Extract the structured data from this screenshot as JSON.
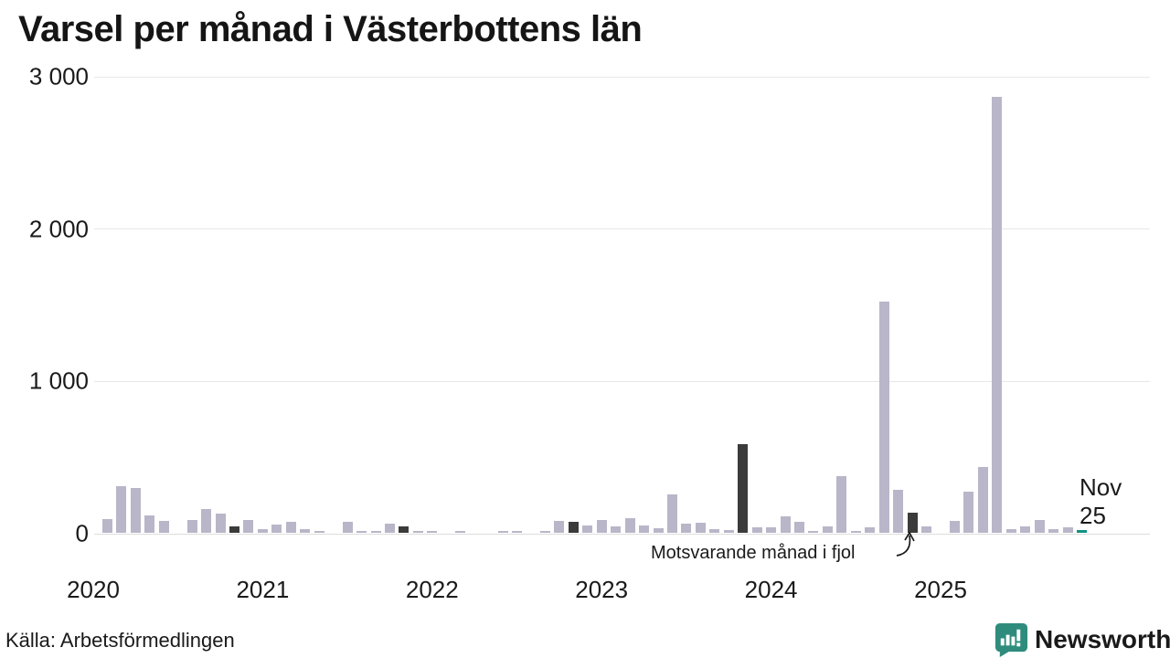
{
  "page": {
    "source_label": "Källa: Arbetsförmedlingen"
  },
  "brand": {
    "name": "Newsworthy",
    "color": "#35897b"
  },
  "chart_data": {
    "type": "bar",
    "title": "Varsel per månad i Västerbottens län",
    "xlabel": "",
    "ylabel": "",
    "ylim": [
      0,
      3000
    ],
    "grid": true,
    "annotation": "Motsvarande månad i fjol",
    "current_point_label": {
      "line1": "Nov",
      "line2": "25"
    },
    "colors": {
      "normal": "#b9b6c9",
      "last_year_month": "#3b3b3b",
      "current_month": "#109283",
      "gridline": "#e7e7e7",
      "text": "#1a1a1a"
    },
    "yticks": [
      {
        "v": 0,
        "label": "0"
      },
      {
        "v": 1000,
        "label": "1 000"
      },
      {
        "v": 2000,
        "label": "2 000"
      },
      {
        "v": 3000,
        "label": "3 000"
      }
    ],
    "year_labels": [
      "2020",
      "2021",
      "2022",
      "2023",
      "2024",
      "2025"
    ],
    "months": [
      {
        "d": "2020-01",
        "v": 0,
        "r": "n"
      },
      {
        "d": "2020-02",
        "v": 90,
        "r": "n"
      },
      {
        "d": "2020-03",
        "v": 305,
        "r": "n"
      },
      {
        "d": "2020-04",
        "v": 295,
        "r": "n"
      },
      {
        "d": "2020-05",
        "v": 115,
        "r": "n"
      },
      {
        "d": "2020-06",
        "v": 80,
        "r": "n"
      },
      {
        "d": "2020-07",
        "v": 0,
        "r": "n"
      },
      {
        "d": "2020-08",
        "v": 85,
        "r": "n"
      },
      {
        "d": "2020-09",
        "v": 155,
        "r": "n"
      },
      {
        "d": "2020-10",
        "v": 125,
        "r": "n"
      },
      {
        "d": "2020-11",
        "v": 40,
        "r": "l"
      },
      {
        "d": "2020-12",
        "v": 85,
        "r": "n"
      },
      {
        "d": "2021-01",
        "v": 25,
        "r": "n"
      },
      {
        "d": "2021-02",
        "v": 55,
        "r": "n"
      },
      {
        "d": "2021-03",
        "v": 70,
        "r": "n"
      },
      {
        "d": "2021-04",
        "v": 22,
        "r": "n"
      },
      {
        "d": "2021-05",
        "v": 12,
        "r": "n"
      },
      {
        "d": "2021-06",
        "v": 0,
        "r": "n"
      },
      {
        "d": "2021-07",
        "v": 75,
        "r": "n"
      },
      {
        "d": "2021-08",
        "v": 8,
        "r": "n"
      },
      {
        "d": "2021-09",
        "v": 5,
        "r": "n"
      },
      {
        "d": "2021-10",
        "v": 58,
        "r": "n"
      },
      {
        "d": "2021-11",
        "v": 42,
        "r": "l"
      },
      {
        "d": "2021-12",
        "v": 8,
        "r": "n"
      },
      {
        "d": "2022-01",
        "v": 10,
        "r": "n"
      },
      {
        "d": "2022-02",
        "v": 0,
        "r": "n"
      },
      {
        "d": "2022-03",
        "v": 8,
        "r": "n"
      },
      {
        "d": "2022-04",
        "v": 0,
        "r": "n"
      },
      {
        "d": "2022-05",
        "v": 0,
        "r": "n"
      },
      {
        "d": "2022-06",
        "v": 8,
        "r": "n"
      },
      {
        "d": "2022-07",
        "v": 8,
        "r": "n"
      },
      {
        "d": "2022-08",
        "v": 0,
        "r": "n"
      },
      {
        "d": "2022-09",
        "v": 5,
        "r": "n"
      },
      {
        "d": "2022-10",
        "v": 78,
        "r": "n"
      },
      {
        "d": "2022-11",
        "v": 70,
        "r": "l"
      },
      {
        "d": "2022-12",
        "v": 48,
        "r": "n"
      },
      {
        "d": "2023-01",
        "v": 86,
        "r": "n"
      },
      {
        "d": "2023-02",
        "v": 42,
        "r": "n"
      },
      {
        "d": "2023-03",
        "v": 96,
        "r": "n"
      },
      {
        "d": "2023-04",
        "v": 46,
        "r": "n"
      },
      {
        "d": "2023-05",
        "v": 30,
        "r": "n"
      },
      {
        "d": "2023-06",
        "v": 250,
        "r": "n"
      },
      {
        "d": "2023-07",
        "v": 60,
        "r": "n"
      },
      {
        "d": "2023-08",
        "v": 66,
        "r": "n"
      },
      {
        "d": "2023-09",
        "v": 26,
        "r": "n"
      },
      {
        "d": "2023-10",
        "v": 18,
        "r": "n"
      },
      {
        "d": "2023-11",
        "v": 585,
        "r": "l"
      },
      {
        "d": "2023-12",
        "v": 35,
        "r": "n"
      },
      {
        "d": "2024-01",
        "v": 34,
        "r": "n"
      },
      {
        "d": "2024-02",
        "v": 107,
        "r": "n"
      },
      {
        "d": "2024-03",
        "v": 70,
        "r": "n"
      },
      {
        "d": "2024-04",
        "v": 15,
        "r": "n"
      },
      {
        "d": "2024-05",
        "v": 40,
        "r": "n"
      },
      {
        "d": "2024-06",
        "v": 375,
        "r": "n"
      },
      {
        "d": "2024-07",
        "v": 15,
        "r": "n"
      },
      {
        "d": "2024-08",
        "v": 35,
        "r": "n"
      },
      {
        "d": "2024-09",
        "v": 1520,
        "r": "n"
      },
      {
        "d": "2024-10",
        "v": 285,
        "r": "n"
      },
      {
        "d": "2024-11",
        "v": 130,
        "r": "l"
      },
      {
        "d": "2024-12",
        "v": 45,
        "r": "n"
      },
      {
        "d": "2025-01",
        "v": 0,
        "r": "n"
      },
      {
        "d": "2025-02",
        "v": 78,
        "r": "n"
      },
      {
        "d": "2025-03",
        "v": 270,
        "r": "n"
      },
      {
        "d": "2025-04",
        "v": 435,
        "r": "n"
      },
      {
        "d": "2025-05",
        "v": 2860,
        "r": "n"
      },
      {
        "d": "2025-06",
        "v": 26,
        "r": "n"
      },
      {
        "d": "2025-07",
        "v": 44,
        "r": "n"
      },
      {
        "d": "2025-08",
        "v": 84,
        "r": "n"
      },
      {
        "d": "2025-09",
        "v": 25,
        "r": "n"
      },
      {
        "d": "2025-10",
        "v": 34,
        "r": "n"
      },
      {
        "d": "2025-11",
        "v": 20,
        "r": "c"
      }
    ]
  }
}
